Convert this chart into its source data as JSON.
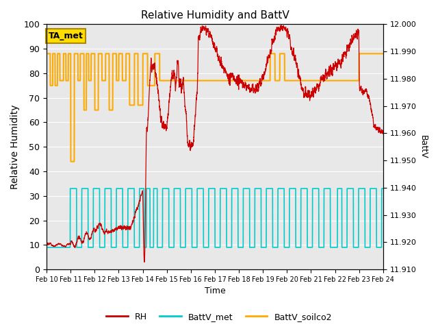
{
  "title": "Relative Humidity and BattV",
  "xlabel": "Time",
  "ylabel_left": "Relative Humidity",
  "ylabel_right": "BattV",
  "xlim_start": 0,
  "xlim_end": 14,
  "ylim_left": [
    0,
    100
  ],
  "ylim_right": [
    11.91,
    12.0
  ],
  "xtick_labels": [
    "Feb 10",
    "Feb 11",
    "Feb 12",
    "Feb 13",
    "Feb 14",
    "Feb 15",
    "Feb 16",
    "Feb 17",
    "Feb 18",
    "Feb 19",
    "Feb 20",
    "Feb 21",
    "Feb 22",
    "Feb 23",
    "Feb 24"
  ],
  "xtick_positions": [
    0,
    1,
    2,
    3,
    4,
    5,
    6,
    7,
    8,
    9,
    10,
    11,
    12,
    13,
    14
  ],
  "ytick_left": [
    0,
    10,
    20,
    30,
    40,
    50,
    60,
    70,
    80,
    90,
    100
  ],
  "ytick_right": [
    11.91,
    11.92,
    11.93,
    11.94,
    11.95,
    11.96,
    11.97,
    11.98,
    11.99,
    12.0
  ],
  "bg_color": "#e8e8e8",
  "rh_color": "#cc0000",
  "battv_met_color": "#00cccc",
  "battv_soilco2_color": "#ffaa00",
  "annotation_text": "TA_met",
  "annotation_box_color": "#ffdd00",
  "annotation_edge_color": "#aa8800",
  "legend_rh": "RH",
  "legend_battv_met": "BattV_met",
  "legend_battv_soilco2": "BattV_soilco2"
}
